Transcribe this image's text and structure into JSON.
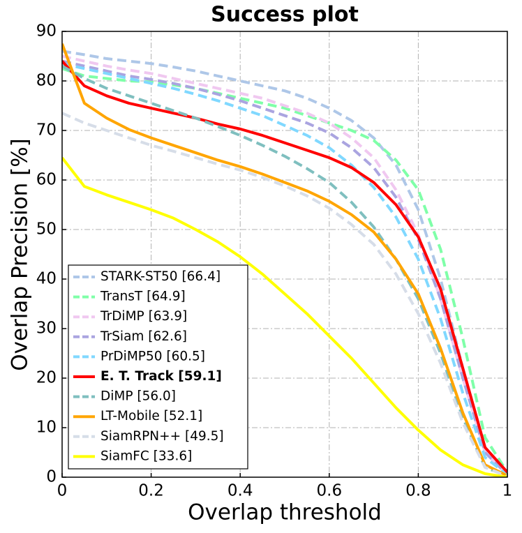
{
  "chart_data": {
    "type": "line",
    "title": "Success plot",
    "x_label": "Overlap threshold",
    "y_label": "Overlap Precision [%]",
    "x": [
      0,
      0.05,
      0.1,
      0.15,
      0.2,
      0.25,
      0.3,
      0.35,
      0.4,
      0.45,
      0.5,
      0.55,
      0.6,
      0.65,
      0.7,
      0.75,
      0.8,
      0.85,
      0.9,
      0.95,
      1
    ],
    "xlim": [
      0,
      1
    ],
    "ylim": [
      0,
      90
    ],
    "xticks": [
      0,
      0.2,
      0.4,
      0.6,
      0.8,
      1
    ],
    "yticks": [
      0,
      10,
      20,
      30,
      40,
      50,
      60,
      70,
      80,
      90
    ],
    "grid": true,
    "legend": "lower left",
    "series": [
      {
        "name": "STARK-ST50 [66.4]",
        "color": "#aec7e8",
        "dashed": true,
        "values": [
          86,
          85.3,
          84.5,
          84,
          83.5,
          82.8,
          82,
          81,
          80,
          79,
          78,
          76.5,
          74.5,
          72,
          68.5,
          63,
          54,
          40,
          22,
          6,
          1
        ]
      },
      {
        "name": "TransT [64.9]",
        "color": "#7fffa8",
        "dashed": true,
        "values": [
          82.5,
          81,
          80.5,
          80,
          79.8,
          79.2,
          78.5,
          77.5,
          76.5,
          75.5,
          74.5,
          73,
          71.5,
          70,
          68,
          64,
          58,
          46,
          28,
          8,
          1
        ]
      },
      {
        "name": "TrDiMP [63.9]",
        "color": "#f0c8f0",
        "dashed": true,
        "values": [
          85,
          84,
          83,
          82.2,
          81.5,
          80.5,
          79.5,
          78.5,
          77.5,
          76.5,
          75,
          73.5,
          71.5,
          68.5,
          64.5,
          58,
          49,
          36,
          20,
          5,
          0.5
        ]
      },
      {
        "name": "TrSiam [62.6]",
        "color": "#aaa4e0",
        "dashed": true,
        "values": [
          84,
          83,
          82,
          81,
          80.3,
          79.5,
          78.5,
          77.3,
          76,
          74.5,
          73,
          71.5,
          69.5,
          66.5,
          62.5,
          56.5,
          48,
          36,
          20,
          5,
          0.5
        ]
      },
      {
        "name": "PrDiMP50 [60.5]",
        "color": "#80d8ff",
        "dashed": true,
        "values": [
          83.5,
          82.5,
          81.5,
          80.5,
          79.5,
          78.5,
          77.3,
          76,
          74.5,
          73,
          71,
          69,
          66.5,
          63,
          58.5,
          52.5,
          44,
          32,
          17,
          4,
          0.5
        ]
      },
      {
        "name": "E. T. Track [59.1]",
        "color": "#ff0000",
        "dashed": false,
        "bold": true,
        "values": [
          84,
          79,
          77,
          75.5,
          74.5,
          73.5,
          72.5,
          71.3,
          70.3,
          69,
          67.5,
          66,
          64.5,
          62.5,
          59.5,
          55,
          48.5,
          38,
          22,
          6,
          1
        ]
      },
      {
        "name": "DiMP [56.0]",
        "color": "#7fbfbf",
        "dashed": true,
        "values": [
          83,
          80.5,
          78.5,
          77,
          75.5,
          74,
          72.5,
          70.8,
          69,
          67,
          64.8,
          62.3,
          59.5,
          55.5,
          50.5,
          44,
          36,
          25,
          12,
          2,
          0.2
        ]
      },
      {
        "name": "LT-Mobile [52.1]",
        "color": "#ffa500",
        "dashed": false,
        "values": [
          87.5,
          75.5,
          72.5,
          70.2,
          68.5,
          67,
          65.5,
          64,
          62.7,
          61.2,
          59.5,
          57.8,
          55.7,
          53,
          49.5,
          44,
          37,
          26,
          13,
          2.5,
          0.3
        ]
      },
      {
        "name": "SiamRPN++ [49.5]",
        "color": "#d6dde8",
        "dashed": true,
        "values": [
          73.5,
          71.5,
          70,
          68.5,
          67,
          65.8,
          64.5,
          63.2,
          62,
          60.5,
          58.8,
          56.8,
          54.3,
          51,
          47,
          41,
          33,
          23,
          11,
          2,
          0.2
        ]
      },
      {
        "name": "SiamFC [33.6]",
        "color": "#ffff00",
        "dashed": false,
        "values": [
          64.5,
          58.7,
          57,
          55.5,
          54,
          52.3,
          50,
          47.5,
          44.5,
          41,
          37,
          33,
          28.5,
          24,
          19,
          14,
          9.5,
          5.5,
          2.5,
          0.7,
          0
        ]
      }
    ]
  }
}
